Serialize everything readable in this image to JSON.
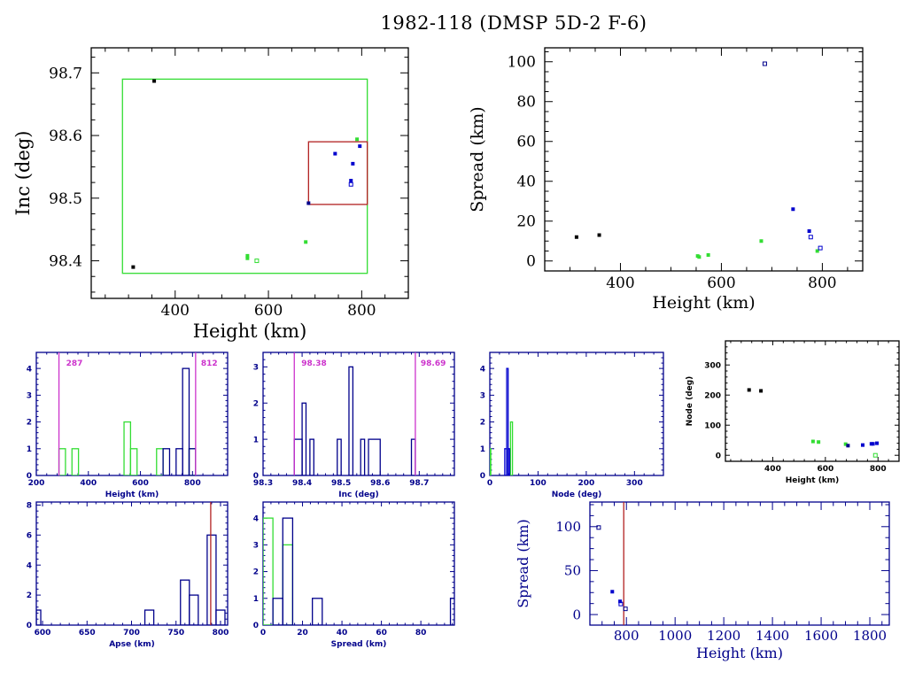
{
  "title": "1982-118 (DMSP 5D-2 F-6)",
  "colors": {
    "black": "#000000",
    "navy": "#00008b",
    "blue": "#0000cd",
    "green": "#33dd33",
    "magenta": "#cc33cc",
    "red": "#b22222"
  },
  "chart_data": [
    {
      "id": "inc-vs-height",
      "type": "scatter",
      "xlabel": "Height (km)",
      "ylabel": "Inc (deg)",
      "xlim": [
        220,
        900
      ],
      "ylim": [
        98.34,
        98.74
      ],
      "xticks": [
        400,
        600,
        800
      ],
      "yticks": [
        98.4,
        98.5,
        98.6,
        98.7
      ],
      "boxes": [
        {
          "name": "green-range-box",
          "color": "green",
          "x": [
            287,
            812
          ],
          "y": [
            98.38,
            98.69
          ]
        },
        {
          "name": "red-range-box",
          "color": "red",
          "x": [
            686,
            812
          ],
          "y": [
            98.49,
            98.59
          ]
        }
      ],
      "points": [
        {
          "x": 355,
          "y": 98.687,
          "color": "black"
        },
        {
          "x": 310,
          "y": 98.39,
          "color": "black"
        },
        {
          "x": 555,
          "y": 98.408,
          "color": "green"
        },
        {
          "x": 555,
          "y": 98.404,
          "color": "green"
        },
        {
          "x": 575,
          "y": 98.4,
          "color": "green",
          "open": true
        },
        {
          "x": 680,
          "y": 98.43,
          "color": "green"
        },
        {
          "x": 790,
          "y": 98.594,
          "color": "green"
        },
        {
          "x": 796,
          "y": 98.583,
          "color": "blue"
        },
        {
          "x": 743,
          "y": 98.571,
          "color": "blue"
        },
        {
          "x": 781,
          "y": 98.555,
          "color": "blue"
        },
        {
          "x": 777,
          "y": 98.528,
          "color": "blue"
        },
        {
          "x": 777,
          "y": 98.522,
          "color": "blue",
          "open": true
        },
        {
          "x": 686,
          "y": 98.492,
          "color": "navy"
        }
      ]
    },
    {
      "id": "spread-vs-height",
      "type": "scatter",
      "xlabel": "Height (km)",
      "ylabel": "Spread (km)",
      "xlim": [
        250,
        880
      ],
      "ylim": [
        -5,
        107
      ],
      "xticks": [
        400,
        600,
        800
      ],
      "yticks": [
        0,
        20,
        40,
        60,
        80,
        100
      ],
      "points": [
        {
          "x": 313,
          "y": 12,
          "color": "black"
        },
        {
          "x": 358,
          "y": 13,
          "color": "black"
        },
        {
          "x": 553,
          "y": 2.5,
          "color": "green"
        },
        {
          "x": 556,
          "y": 2,
          "color": "green"
        },
        {
          "x": 574,
          "y": 3,
          "color": "green"
        },
        {
          "x": 679,
          "y": 10,
          "color": "green"
        },
        {
          "x": 790,
          "y": 5,
          "color": "green"
        },
        {
          "x": 686,
          "y": 99,
          "color": "navy",
          "open": true
        },
        {
          "x": 742,
          "y": 26,
          "color": "blue"
        },
        {
          "x": 774,
          "y": 15,
          "color": "blue"
        },
        {
          "x": 777,
          "y": 12,
          "color": "blue",
          "open": true
        },
        {
          "x": 796,
          "y": 6.5,
          "color": "blue",
          "open": true
        }
      ]
    },
    {
      "id": "height-histogram",
      "type": "bar",
      "xlabel": "Height (km)",
      "ylabel": "",
      "xlim": [
        200,
        935
      ],
      "ylim": [
        0,
        4.6
      ],
      "xticks": [
        200,
        400,
        600,
        800
      ],
      "yticks": [
        0,
        1,
        2,
        3,
        4
      ],
      "bin_width": 25,
      "vlines": [
        {
          "x": 287,
          "label": "287",
          "color": "magenta"
        },
        {
          "x": 812,
          "label": "812",
          "color": "magenta"
        }
      ],
      "series": [
        {
          "name": "green",
          "color": "green",
          "bins": [
            [
              287,
              1
            ],
            [
              337,
              1
            ],
            [
              537,
              2
            ],
            [
              562,
              1
            ],
            [
              662,
              1
            ],
            [
              787,
              1
            ]
          ]
        },
        {
          "name": "blue",
          "color": "navy",
          "bins": [
            [
              687,
              1
            ],
            [
              737,
              1
            ],
            [
              762,
              4
            ],
            [
              787,
              1
            ]
          ]
        }
      ]
    },
    {
      "id": "inc-histogram",
      "type": "bar",
      "xlabel": "Inc (deg)",
      "ylabel": "",
      "xlim": [
        98.3,
        98.79
      ],
      "ylim": [
        0,
        3.4
      ],
      "xticks": [
        98.3,
        98.4,
        98.5,
        98.6,
        98.7
      ],
      "yticks": [
        0,
        1,
        2,
        3
      ],
      "vlines": [
        {
          "x": 98.38,
          "label": "98.38",
          "color": "magenta"
        },
        {
          "x": 98.69,
          "label": "98.69",
          "color": "magenta"
        }
      ],
      "series": [
        {
          "name": "all",
          "color": "navy",
          "bins": [
            [
              98.38,
              98.4,
              1
            ],
            [
              98.4,
              98.41,
              2
            ],
            [
              98.42,
              98.43,
              1
            ],
            [
              98.49,
              98.5,
              1
            ],
            [
              98.52,
              98.53,
              3
            ],
            [
              98.55,
              98.56,
              1
            ],
            [
              98.57,
              98.6,
              1
            ],
            [
              98.68,
              98.69,
              1
            ]
          ]
        }
      ]
    },
    {
      "id": "node-histogram",
      "type": "bar",
      "xlabel": "Node (deg)",
      "ylabel": "",
      "xlim": [
        0,
        360
      ],
      "ylim": [
        0,
        4.6
      ],
      "xticks": [
        0,
        100,
        200,
        300
      ],
      "yticks": [
        0,
        1,
        2,
        3,
        4
      ],
      "series": [
        {
          "name": "green",
          "color": "green",
          "bins": [
            [
              0,
              2,
              1
            ],
            [
              43,
              47,
              2
            ]
          ]
        },
        {
          "name": "blue",
          "color": "blue",
          "bins": [
            [
              31,
              35,
              1
            ],
            [
              35,
              38,
              4
            ],
            [
              38,
              41,
              1
            ]
          ]
        }
      ]
    },
    {
      "id": "node-vs-height",
      "type": "scatter",
      "xlabel": "Height (km)",
      "ylabel": "Node (deg)",
      "xlim": [
        220,
        880
      ],
      "ylim": [
        -20,
        380
      ],
      "xticks": [
        400,
        600,
        800
      ],
      "yticks": [
        0,
        100,
        200,
        300
      ],
      "points": [
        {
          "x": 310,
          "y": 217,
          "color": "black"
        },
        {
          "x": 355,
          "y": 214,
          "color": "black"
        },
        {
          "x": 553,
          "y": 46,
          "color": "green"
        },
        {
          "x": 574,
          "y": 44,
          "color": "green"
        },
        {
          "x": 677,
          "y": 37,
          "color": "green"
        },
        {
          "x": 790,
          "y": 0,
          "color": "green",
          "open": true
        },
        {
          "x": 686,
          "y": 32,
          "color": "navy"
        },
        {
          "x": 742,
          "y": 34,
          "color": "blue"
        },
        {
          "x": 775,
          "y": 38,
          "color": "blue"
        },
        {
          "x": 781,
          "y": 38,
          "color": "blue"
        },
        {
          "x": 796,
          "y": 40,
          "color": "blue"
        }
      ]
    },
    {
      "id": "apse-histogram",
      "type": "bar",
      "xlabel": "Apse (km)",
      "ylabel": "",
      "xlim": [
        593,
        808
      ],
      "ylim": [
        0,
        8.2
      ],
      "xticks": [
        600,
        650,
        700,
        750,
        800
      ],
      "yticks": [
        0,
        2,
        4,
        6,
        8
      ],
      "vlines": [
        {
          "x": 789,
          "label": "",
          "color": "red"
        }
      ],
      "series": [
        {
          "name": "all",
          "color": "navy",
          "bins": [
            [
              593,
              598,
              1
            ],
            [
              715,
              725,
              1
            ],
            [
              755,
              765,
              3
            ],
            [
              765,
              775,
              2
            ],
            [
              785,
              795,
              6
            ],
            [
              795,
              805,
              1
            ]
          ]
        }
      ]
    },
    {
      "id": "spread-histogram",
      "type": "bar",
      "xlabel": "Spread (km)",
      "ylabel": "",
      "xlim": [
        0,
        97
      ],
      "ylim": [
        0,
        4.6
      ],
      "xticks": [
        0,
        20,
        40,
        60,
        80
      ],
      "yticks": [
        0,
        1,
        2,
        3,
        4
      ],
      "series": [
        {
          "name": "green",
          "color": "green",
          "bins": [
            [
              0,
              5,
              4
            ],
            [
              10,
              15,
              3
            ]
          ]
        },
        {
          "name": "blue",
          "color": "navy",
          "bins": [
            [
              5,
              10,
              1
            ],
            [
              10,
              15,
              4
            ],
            [
              25,
              30,
              1
            ],
            [
              95,
              100,
              1
            ]
          ]
        }
      ]
    },
    {
      "id": "spread-vs-height-wide",
      "type": "scatter",
      "xlabel": "Height (km)",
      "ylabel": "Spread (km)",
      "xlim": [
        650,
        1880
      ],
      "ylim": [
        -12,
        128
      ],
      "xticks": [
        800,
        1000,
        1200,
        1400,
        1600,
        1800
      ],
      "yticks": [
        0,
        50,
        100
      ],
      "vlines": [
        {
          "x": 789,
          "label": "",
          "color": "red"
        }
      ],
      "points": [
        {
          "x": 686,
          "y": 99,
          "color": "navy",
          "open": true
        },
        {
          "x": 742,
          "y": 26,
          "color": "blue"
        },
        {
          "x": 774,
          "y": 15,
          "color": "blue"
        },
        {
          "x": 777,
          "y": 12,
          "color": "blue",
          "open": true
        },
        {
          "x": 796,
          "y": 6.5,
          "color": "navy",
          "open": true
        }
      ]
    }
  ]
}
